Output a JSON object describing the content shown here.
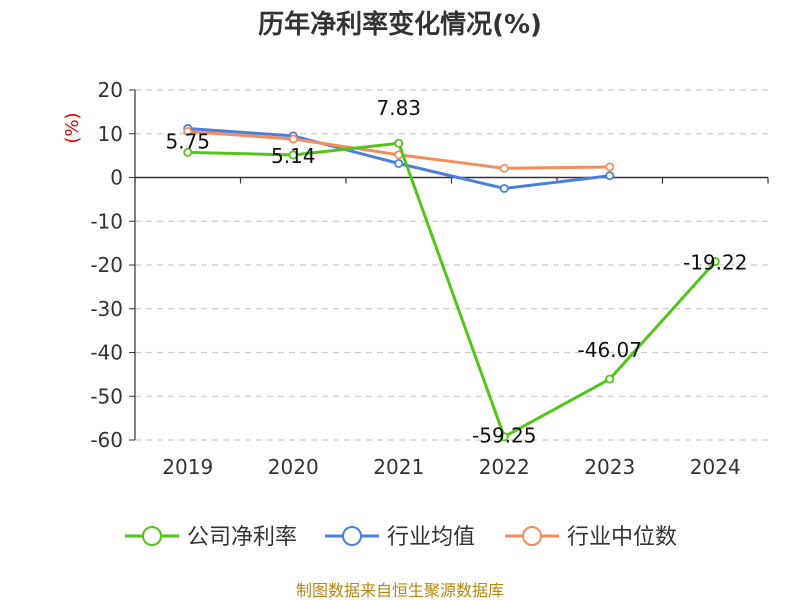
{
  "chart_data": {
    "type": "line",
    "title": "历年净利率变化情况(%)",
    "ylabel": "(%)",
    "xlabel": "",
    "categories": [
      "2019",
      "2020",
      "2021",
      "2022",
      "2023",
      "2024"
    ],
    "ylim": [
      -60,
      20
    ],
    "yticks": [
      20,
      10,
      0,
      -10,
      -20,
      -30,
      -40,
      -50,
      -60
    ],
    "grid": true,
    "legend_position": "bottom",
    "series": [
      {
        "name": "公司净利率",
        "color": "#52c41a",
        "values": [
          5.75,
          5.14,
          7.83,
          -59.25,
          -46.07,
          -19.22
        ],
        "labels": [
          "5.75",
          "5.14",
          "7.83",
          "-59.25",
          "-46.07",
          "-19.22"
        ]
      },
      {
        "name": "行业均值",
        "color": "#4a7fe0",
        "values": [
          11.2,
          9.5,
          3.2,
          -2.5,
          0.4,
          null
        ]
      },
      {
        "name": "行业中位数",
        "color": "#f28e5a",
        "values": [
          10.5,
          8.8,
          5.2,
          2.1,
          2.4,
          null
        ]
      }
    ]
  },
  "footer": "制图数据来自恒生聚源数据库"
}
